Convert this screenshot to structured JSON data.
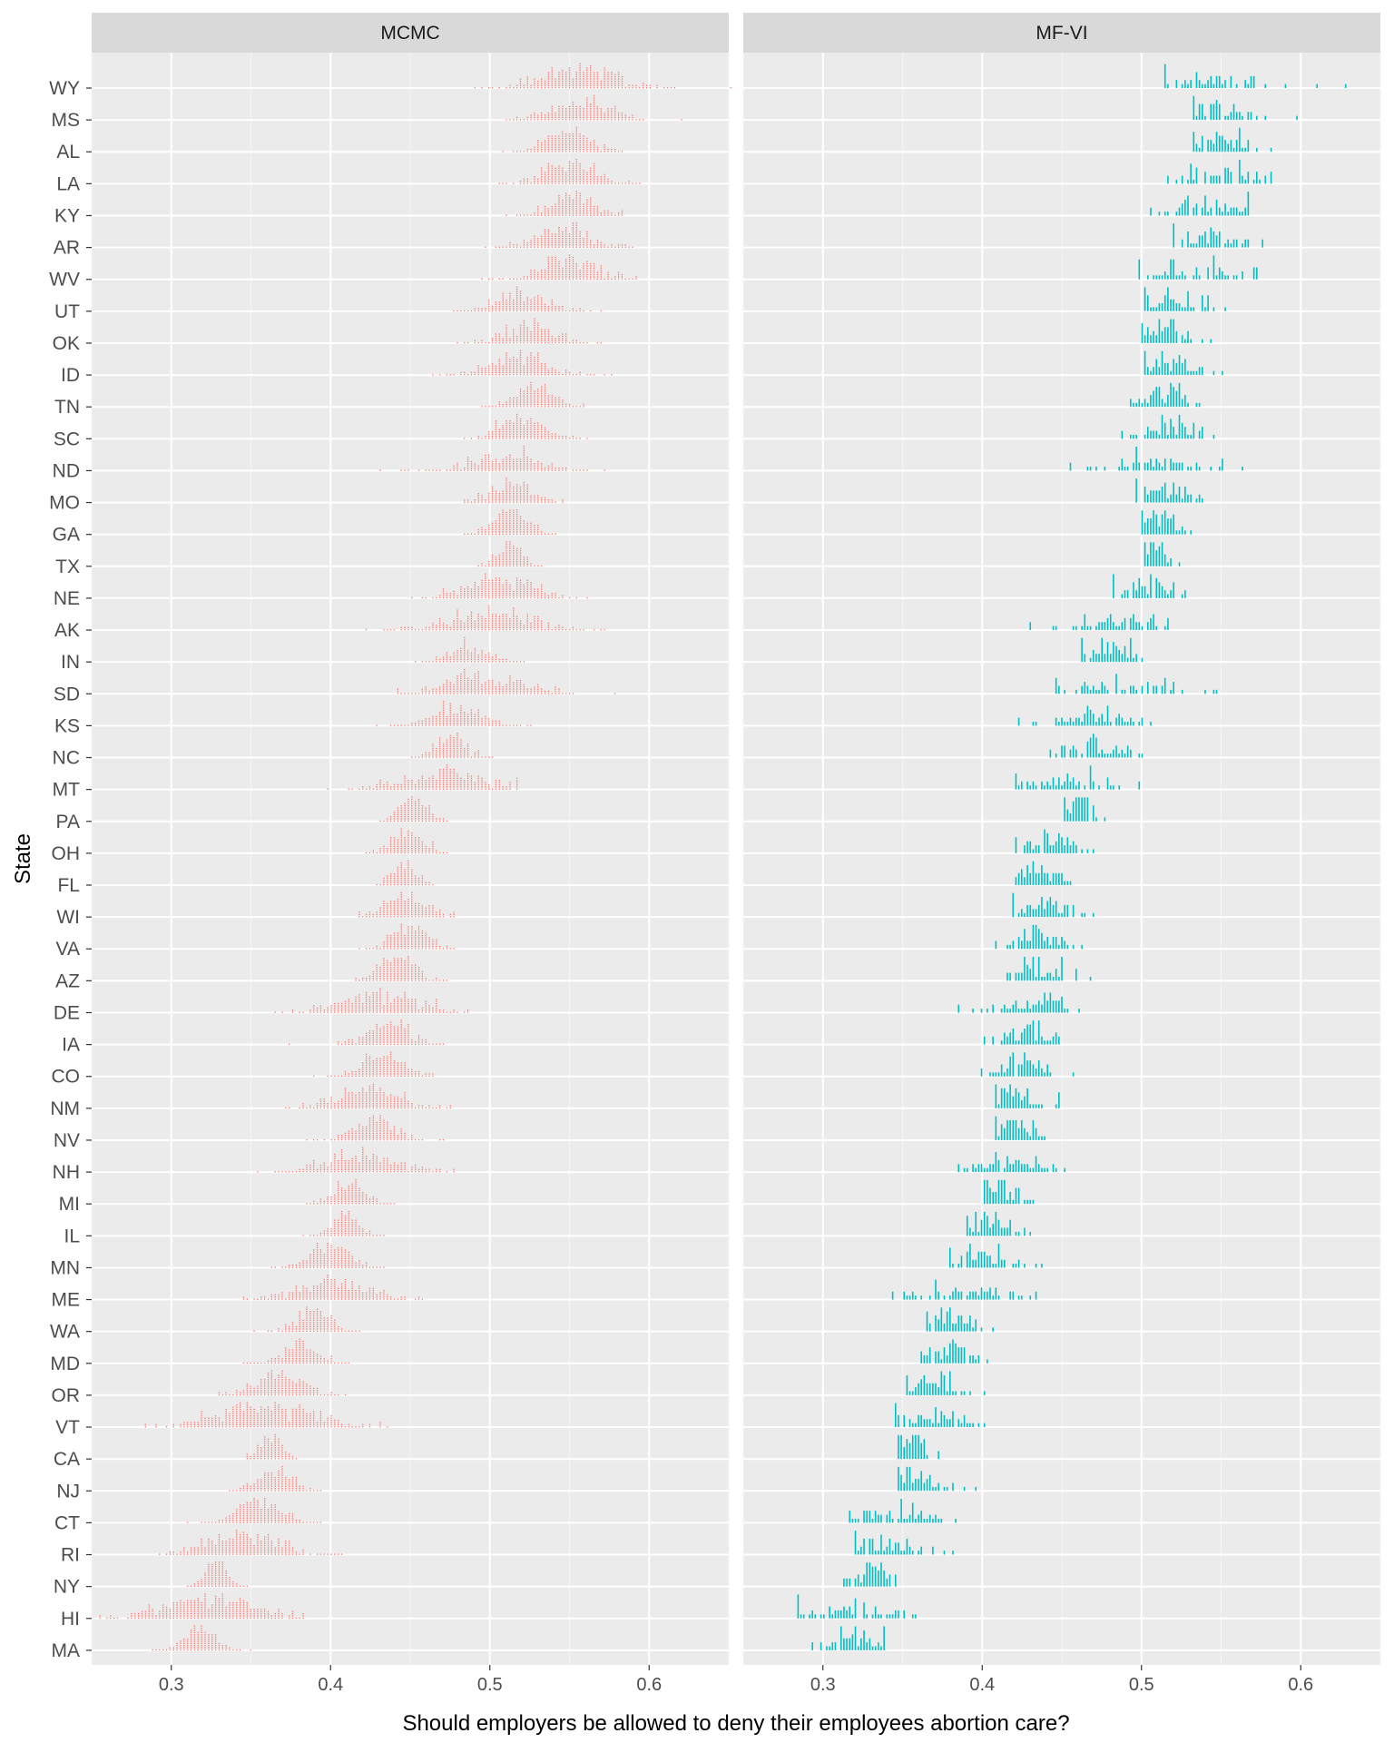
{
  "chart_data": {
    "type": "dot-histogram",
    "xlabel": "Should employers be allowed to deny their employees abortion care?",
    "ylabel": "State",
    "xlim": [
      0.25,
      0.65
    ],
    "x_ticks": [
      0.3,
      0.4,
      0.5,
      0.6
    ],
    "x_tick_labels": [
      "0.3",
      "0.4",
      "0.5",
      "0.6"
    ],
    "grid": true,
    "panels": [
      {
        "name": "MCMC",
        "color": "#F8766D"
      },
      {
        "name": "MF-VI",
        "color": "#00BFC4"
      }
    ],
    "states": [
      {
        "state": "WY",
        "mcmc": {
          "mean": 0.555,
          "sd": 0.022,
          "min": 0.49,
          "max": 0.652
        },
        "mfvi": {
          "mean": 0.54,
          "sd": 0.03,
          "min": 0.515,
          "max": 0.628
        }
      },
      {
        "state": "MS",
        "mcmc": {
          "mean": 0.557,
          "sd": 0.018,
          "min": 0.51,
          "max": 0.62
        },
        "mfvi": {
          "mean": 0.55,
          "sd": 0.016,
          "min": 0.533,
          "max": 0.597
        }
      },
      {
        "state": "AL",
        "mcmc": {
          "mean": 0.548,
          "sd": 0.013,
          "min": 0.508,
          "max": 0.582
        },
        "mfvi": {
          "mean": 0.553,
          "sd": 0.011,
          "min": 0.533,
          "max": 0.581
        }
      },
      {
        "state": "LA",
        "mcmc": {
          "mean": 0.551,
          "sd": 0.016,
          "min": 0.506,
          "max": 0.594
        },
        "mfvi": {
          "mean": 0.548,
          "sd": 0.02,
          "min": 0.517,
          "max": 0.582
        }
      },
      {
        "state": "KY",
        "mcmc": {
          "mean": 0.553,
          "sd": 0.013,
          "min": 0.51,
          "max": 0.584
        },
        "mfvi": {
          "mean": 0.545,
          "sd": 0.016,
          "min": 0.505,
          "max": 0.567
        }
      },
      {
        "state": "AR",
        "mcmc": {
          "mean": 0.546,
          "sd": 0.017,
          "min": 0.497,
          "max": 0.589
        },
        "mfvi": {
          "mean": 0.54,
          "sd": 0.016,
          "min": 0.52,
          "max": 0.576
        }
      },
      {
        "state": "WV",
        "mcmc": {
          "mean": 0.548,
          "sd": 0.018,
          "min": 0.496,
          "max": 0.592
        },
        "mfvi": {
          "mean": 0.535,
          "sd": 0.023,
          "min": 0.498,
          "max": 0.573
        }
      },
      {
        "state": "UT",
        "mcmc": {
          "mean": 0.52,
          "sd": 0.016,
          "min": 0.478,
          "max": 0.57
        },
        "mfvi": {
          "mean": 0.522,
          "sd": 0.016,
          "min": 0.502,
          "max": 0.552
        }
      },
      {
        "state": "OK",
        "mcmc": {
          "mean": 0.525,
          "sd": 0.016,
          "min": 0.48,
          "max": 0.57
        },
        "mfvi": {
          "mean": 0.515,
          "sd": 0.011,
          "min": 0.5,
          "max": 0.543
        }
      },
      {
        "state": "ID",
        "mcmc": {
          "mean": 0.52,
          "sd": 0.02,
          "min": 0.465,
          "max": 0.577
        },
        "mfvi": {
          "mean": 0.518,
          "sd": 0.012,
          "min": 0.503,
          "max": 0.551
        }
      },
      {
        "state": "TN",
        "mcmc": {
          "mean": 0.528,
          "sd": 0.012,
          "min": 0.494,
          "max": 0.558
        },
        "mfvi": {
          "mean": 0.518,
          "sd": 0.011,
          "min": 0.493,
          "max": 0.537
        }
      },
      {
        "state": "SC",
        "mcmc": {
          "mean": 0.52,
          "sd": 0.013,
          "min": 0.484,
          "max": 0.562
        },
        "mfvi": {
          "mean": 0.52,
          "sd": 0.013,
          "min": 0.487,
          "max": 0.545
        }
      },
      {
        "state": "ND",
        "mcmc": {
          "mean": 0.51,
          "sd": 0.022,
          "min": 0.432,
          "max": 0.571
        },
        "mfvi": {
          "mean": 0.51,
          "sd": 0.025,
          "min": 0.455,
          "max": 0.563
        }
      },
      {
        "state": "MO",
        "mcmc": {
          "mean": 0.515,
          "sd": 0.013,
          "min": 0.485,
          "max": 0.546
        },
        "mfvi": {
          "mean": 0.515,
          "sd": 0.011,
          "min": 0.496,
          "max": 0.539
        }
      },
      {
        "state": "GA",
        "mcmc": {
          "mean": 0.513,
          "sd": 0.011,
          "min": 0.484,
          "max": 0.542
        },
        "mfvi": {
          "mean": 0.51,
          "sd": 0.008,
          "min": 0.5,
          "max": 0.531
        }
      },
      {
        "state": "TX",
        "mcmc": {
          "mean": 0.512,
          "sd": 0.008,
          "min": 0.492,
          "max": 0.533
        },
        "mfvi": {
          "mean": 0.507,
          "sd": 0.007,
          "min": 0.502,
          "max": 0.524
        }
      },
      {
        "state": "NE",
        "mcmc": {
          "mean": 0.505,
          "sd": 0.02,
          "min": 0.452,
          "max": 0.562
        },
        "mfvi": {
          "mean": 0.505,
          "sd": 0.013,
          "min": 0.482,
          "max": 0.527
        }
      },
      {
        "state": "AK",
        "mcmc": {
          "mean": 0.5,
          "sd": 0.026,
          "min": 0.422,
          "max": 0.571
        },
        "mfvi": {
          "mean": 0.485,
          "sd": 0.018,
          "min": 0.43,
          "max": 0.517
        }
      },
      {
        "state": "IN",
        "mcmc": {
          "mean": 0.487,
          "sd": 0.013,
          "min": 0.454,
          "max": 0.521
        },
        "mfvi": {
          "mean": 0.482,
          "sd": 0.011,
          "min": 0.463,
          "max": 0.501
        }
      },
      {
        "state": "SD",
        "mcmc": {
          "mean": 0.495,
          "sd": 0.024,
          "min": 0.442,
          "max": 0.578
        },
        "mfvi": {
          "mean": 0.49,
          "sd": 0.025,
          "min": 0.446,
          "max": 0.548
        }
      },
      {
        "state": "KS",
        "mcmc": {
          "mean": 0.48,
          "sd": 0.017,
          "min": 0.428,
          "max": 0.526
        },
        "mfvi": {
          "mean": 0.47,
          "sd": 0.016,
          "min": 0.423,
          "max": 0.505
        }
      },
      {
        "state": "NC",
        "mcmc": {
          "mean": 0.475,
          "sd": 0.01,
          "min": 0.45,
          "max": 0.502
        },
        "mfvi": {
          "mean": 0.47,
          "sd": 0.013,
          "min": 0.443,
          "max": 0.5
        }
      },
      {
        "state": "MT",
        "mcmc": {
          "mean": 0.47,
          "sd": 0.024,
          "min": 0.398,
          "max": 0.517
        },
        "mfvi": {
          "mean": 0.455,
          "sd": 0.02,
          "min": 0.422,
          "max": 0.498
        }
      },
      {
        "state": "PA",
        "mcmc": {
          "mean": 0.452,
          "sd": 0.009,
          "min": 0.432,
          "max": 0.474
        },
        "mfvi": {
          "mean": 0.46,
          "sd": 0.006,
          "min": 0.451,
          "max": 0.477
        }
      },
      {
        "state": "OH",
        "mcmc": {
          "mean": 0.448,
          "sd": 0.01,
          "min": 0.422,
          "max": 0.474
        },
        "mfvi": {
          "mean": 0.44,
          "sd": 0.012,
          "min": 0.422,
          "max": 0.469
        }
      },
      {
        "state": "FL",
        "mcmc": {
          "mean": 0.447,
          "sd": 0.008,
          "min": 0.43,
          "max": 0.465
        },
        "mfvi": {
          "mean": 0.435,
          "sd": 0.01,
          "min": 0.422,
          "max": 0.455
        }
      },
      {
        "state": "WI",
        "mcmc": {
          "mean": 0.448,
          "sd": 0.013,
          "min": 0.417,
          "max": 0.478
        },
        "mfvi": {
          "mean": 0.438,
          "sd": 0.012,
          "min": 0.42,
          "max": 0.469
        }
      },
      {
        "state": "VA",
        "mcmc": {
          "mean": 0.45,
          "sd": 0.011,
          "min": 0.418,
          "max": 0.478
        },
        "mfvi": {
          "mean": 0.435,
          "sd": 0.012,
          "min": 0.409,
          "max": 0.462
        }
      },
      {
        "state": "AZ",
        "mcmc": {
          "mean": 0.442,
          "sd": 0.011,
          "min": 0.416,
          "max": 0.473
        },
        "mfvi": {
          "mean": 0.438,
          "sd": 0.012,
          "min": 0.416,
          "max": 0.468
        }
      },
      {
        "state": "DE",
        "mcmc": {
          "mean": 0.43,
          "sd": 0.022,
          "min": 0.365,
          "max": 0.486
        },
        "mfvi": {
          "mean": 0.432,
          "sd": 0.015,
          "min": 0.386,
          "max": 0.461
        }
      },
      {
        "state": "IA",
        "mcmc": {
          "mean": 0.436,
          "sd": 0.014,
          "min": 0.373,
          "max": 0.471
        },
        "mfvi": {
          "mean": 0.428,
          "sd": 0.011,
          "min": 0.402,
          "max": 0.449
        }
      },
      {
        "state": "CO",
        "mcmc": {
          "mean": 0.432,
          "sd": 0.013,
          "min": 0.39,
          "max": 0.465
        },
        "mfvi": {
          "mean": 0.425,
          "sd": 0.012,
          "min": 0.4,
          "max": 0.457
        }
      },
      {
        "state": "NM",
        "mcmc": {
          "mean": 0.425,
          "sd": 0.019,
          "min": 0.372,
          "max": 0.476
        },
        "mfvi": {
          "mean": 0.422,
          "sd": 0.011,
          "min": 0.408,
          "max": 0.449
        }
      },
      {
        "state": "NV",
        "mcmc": {
          "mean": 0.428,
          "sd": 0.014,
          "min": 0.384,
          "max": 0.471
        },
        "mfvi": {
          "mean": 0.42,
          "sd": 0.01,
          "min": 0.408,
          "max": 0.44
        }
      },
      {
        "state": "NH",
        "mcmc": {
          "mean": 0.42,
          "sd": 0.022,
          "min": 0.355,
          "max": 0.477
        },
        "mfvi": {
          "mean": 0.415,
          "sd": 0.015,
          "min": 0.386,
          "max": 0.451
        }
      },
      {
        "state": "MI",
        "mcmc": {
          "mean": 0.412,
          "sd": 0.01,
          "min": 0.385,
          "max": 0.439
        },
        "mfvi": {
          "mean": 0.41,
          "sd": 0.008,
          "min": 0.402,
          "max": 0.432
        }
      },
      {
        "state": "IL",
        "mcmc": {
          "mean": 0.409,
          "sd": 0.009,
          "min": 0.382,
          "max": 0.434
        },
        "mfvi": {
          "mean": 0.405,
          "sd": 0.009,
          "min": 0.391,
          "max": 0.431
        }
      },
      {
        "state": "MN",
        "mcmc": {
          "mean": 0.4,
          "sd": 0.013,
          "min": 0.362,
          "max": 0.434
        },
        "mfvi": {
          "mean": 0.405,
          "sd": 0.012,
          "min": 0.38,
          "max": 0.437
        }
      },
      {
        "state": "ME",
        "mcmc": {
          "mean": 0.4,
          "sd": 0.023,
          "min": 0.345,
          "max": 0.457
        },
        "mfvi": {
          "mean": 0.39,
          "sd": 0.02,
          "min": 0.344,
          "max": 0.434
        }
      },
      {
        "state": "WA",
        "mcmc": {
          "mean": 0.39,
          "sd": 0.011,
          "min": 0.352,
          "max": 0.418
        },
        "mfvi": {
          "mean": 0.38,
          "sd": 0.01,
          "min": 0.366,
          "max": 0.407
        }
      },
      {
        "state": "MD",
        "mcmc": {
          "mean": 0.38,
          "sd": 0.011,
          "min": 0.345,
          "max": 0.412
        },
        "mfvi": {
          "mean": 0.38,
          "sd": 0.01,
          "min": 0.361,
          "max": 0.403
        }
      },
      {
        "state": "OR",
        "mcmc": {
          "mean": 0.368,
          "sd": 0.015,
          "min": 0.331,
          "max": 0.409
        },
        "mfvi": {
          "mean": 0.368,
          "sd": 0.011,
          "min": 0.352,
          "max": 0.401
        }
      },
      {
        "state": "VT",
        "mcmc": {
          "mean": 0.358,
          "sd": 0.027,
          "min": 0.283,
          "max": 0.436
        },
        "mfvi": {
          "mean": 0.368,
          "sd": 0.016,
          "min": 0.346,
          "max": 0.401
        }
      },
      {
        "state": "CA",
        "mcmc": {
          "mean": 0.362,
          "sd": 0.007,
          "min": 0.347,
          "max": 0.378
        },
        "mfvi": {
          "mean": 0.355,
          "sd": 0.007,
          "min": 0.348,
          "max": 0.372
        }
      },
      {
        "state": "NJ",
        "mcmc": {
          "mean": 0.365,
          "sd": 0.011,
          "min": 0.336,
          "max": 0.393
        },
        "mfvi": {
          "mean": 0.36,
          "sd": 0.011,
          "min": 0.348,
          "max": 0.396
        }
      },
      {
        "state": "CT",
        "mcmc": {
          "mean": 0.355,
          "sd": 0.014,
          "min": 0.311,
          "max": 0.393
        },
        "mfvi": {
          "mean": 0.345,
          "sd": 0.015,
          "min": 0.316,
          "max": 0.384
        }
      },
      {
        "state": "RI",
        "mcmc": {
          "mean": 0.345,
          "sd": 0.022,
          "min": 0.292,
          "max": 0.406
        },
        "mfvi": {
          "mean": 0.34,
          "sd": 0.015,
          "min": 0.321,
          "max": 0.381
        }
      },
      {
        "state": "NY",
        "mcmc": {
          "mean": 0.328,
          "sd": 0.007,
          "min": 0.31,
          "max": 0.348
        },
        "mfvi": {
          "mean": 0.33,
          "sd": 0.008,
          "min": 0.313,
          "max": 0.346
        }
      },
      {
        "state": "HI",
        "mcmc": {
          "mean": 0.322,
          "sd": 0.026,
          "min": 0.255,
          "max": 0.383
        },
        "mfvi": {
          "mean": 0.318,
          "sd": 0.018,
          "min": 0.284,
          "max": 0.359
        }
      },
      {
        "state": "MA",
        "mcmc": {
          "mean": 0.318,
          "sd": 0.01,
          "min": 0.288,
          "max": 0.35
        },
        "mfvi": {
          "mean": 0.32,
          "sd": 0.01,
          "min": 0.293,
          "max": 0.339
        }
      }
    ]
  }
}
